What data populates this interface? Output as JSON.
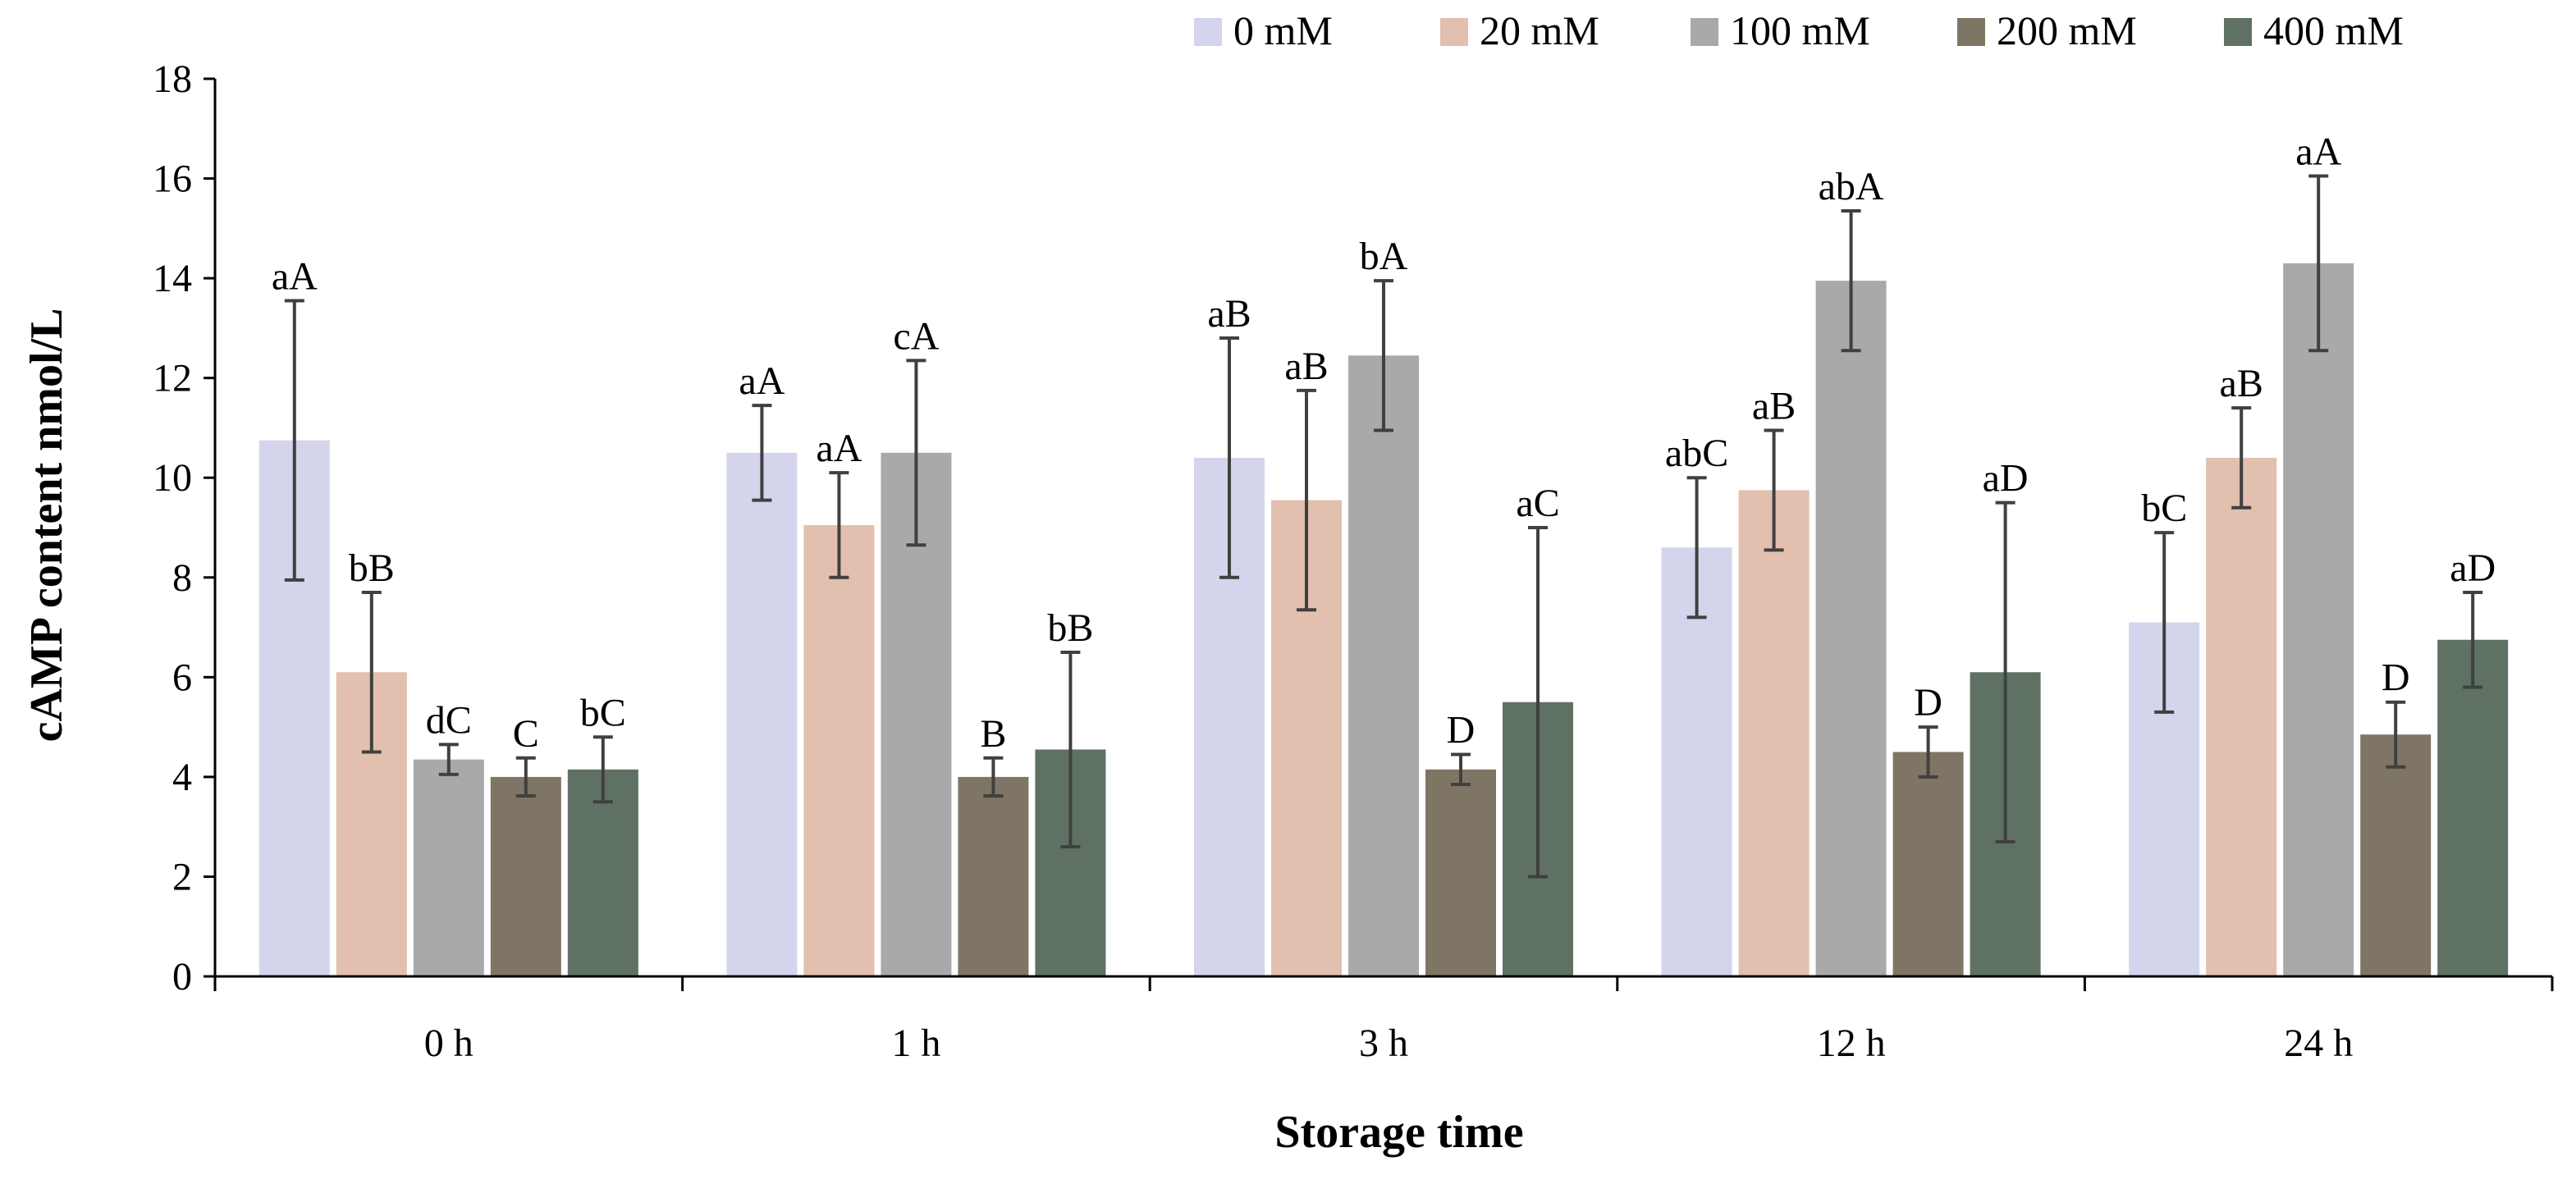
{
  "chart_data": {
    "type": "bar",
    "title": "",
    "xlabel": "Storage time",
    "ylabel": "cAMP content nmol/L",
    "ylim": [
      0,
      18
    ],
    "ytick_step": 2,
    "yticks": [
      "0",
      "2",
      "4",
      "6",
      "8",
      "10",
      "12",
      "14",
      "16",
      "18"
    ],
    "grid": false,
    "legend_position": "top-right",
    "categories": [
      "0 h",
      "1 h",
      "3 h",
      "12 h",
      "24 h"
    ],
    "series": [
      {
        "name": "0 mM",
        "color": "#d4d5ec",
        "values": [
          10.75,
          10.5,
          10.4,
          8.6,
          7.1
        ],
        "errors": [
          2.8,
          0.95,
          2.4,
          1.4,
          1.8
        ],
        "labels": [
          "aA",
          "aA",
          "aB",
          "abC",
          "bC"
        ]
      },
      {
        "name": "20 mM",
        "color": "#e2bfae",
        "values": [
          6.1,
          9.05,
          9.55,
          9.75,
          10.4
        ],
        "errors": [
          1.6,
          1.05,
          2.2,
          1.2,
          1.0
        ],
        "labels": [
          "bB",
          "aA",
          "aB",
          "aB",
          "aB"
        ]
      },
      {
        "name": "100 mM",
        "color": "#a9a9a9",
        "values": [
          4.35,
          10.5,
          12.45,
          13.95,
          14.3
        ],
        "errors": [
          0.3,
          1.85,
          1.5,
          1.4,
          1.75
        ],
        "labels": [
          "dC",
          "cA",
          "bA",
          "abA",
          "aA"
        ]
      },
      {
        "name": "200 mM",
        "color": "#7f7564",
        "values": [
          4.0,
          4.0,
          4.15,
          4.5,
          4.85
        ],
        "errors": [
          0.38,
          0.38,
          0.3,
          0.5,
          0.65
        ],
        "labels": [
          "C",
          "B",
          "D",
          "D",
          "D"
        ]
      },
      {
        "name": "400 mM",
        "color": "#5f7163",
        "values": [
          4.15,
          4.55,
          5.5,
          6.1,
          6.75
        ],
        "errors": [
          0.65,
          1.95,
          3.5,
          3.4,
          0.95
        ],
        "labels": [
          "bC",
          "bB",
          "aC",
          "aD",
          "aD"
        ]
      }
    ]
  }
}
